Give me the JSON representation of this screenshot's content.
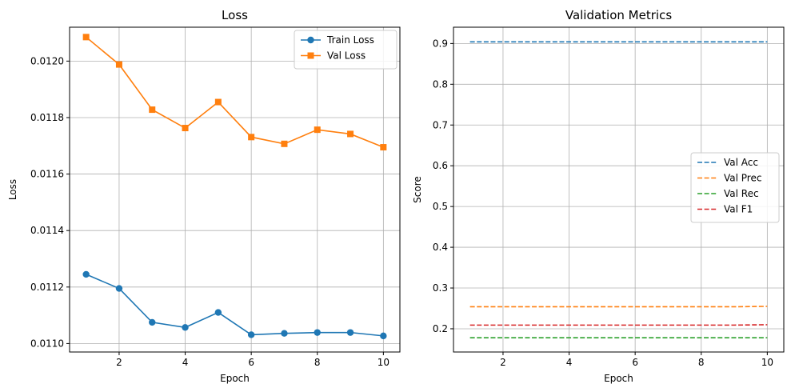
{
  "chart_data": [
    {
      "type": "line",
      "title": "Loss",
      "xlabel": "Epoch",
      "ylabel": "Loss",
      "xlim": [
        0.5,
        10.5
      ],
      "ylim": [
        0.01097,
        0.01212
      ],
      "xticks": [
        2,
        4,
        6,
        8,
        10
      ],
      "yticks": [
        0.011,
        0.0112,
        0.0114,
        0.0116,
        0.0118,
        0.012
      ],
      "ytick_labels": [
        "0.0110",
        "0.0112",
        "0.0114",
        "0.0116",
        "0.0118",
        "0.0120"
      ],
      "grid": true,
      "legend_position": "top-right",
      "x": [
        1,
        2,
        3,
        4,
        5,
        6,
        7,
        8,
        9,
        10
      ],
      "series": [
        {
          "name": "Train Loss",
          "color": "#1f77b4",
          "marker": "circle",
          "values": [
            0.011245,
            0.011195,
            0.011075,
            0.011057,
            0.01111,
            0.011031,
            0.011036,
            0.011039,
            0.011039,
            0.011027
          ]
        },
        {
          "name": "Val Loss",
          "color": "#ff7f0e",
          "marker": "square",
          "values": [
            0.012085,
            0.011988,
            0.011828,
            0.011763,
            0.011855,
            0.011731,
            0.011707,
            0.011757,
            0.011742,
            0.011695
          ]
        }
      ]
    },
    {
      "type": "line",
      "title": "Validation Metrics",
      "xlabel": "Epoch",
      "ylabel": "Score",
      "xlim": [
        0.5,
        10.5
      ],
      "ylim": [
        0.143,
        0.94
      ],
      "xticks": [
        2,
        4,
        6,
        8,
        10
      ],
      "yticks": [
        0.2,
        0.3,
        0.4,
        0.5,
        0.6,
        0.7,
        0.8,
        0.9
      ],
      "ytick_labels": [
        "0.2",
        "0.3",
        "0.4",
        "0.5",
        "0.6",
        "0.7",
        "0.8",
        "0.9"
      ],
      "grid": true,
      "legend_position": "center-right",
      "x": [
        1,
        2,
        3,
        4,
        5,
        6,
        7,
        8,
        9,
        10
      ],
      "series": [
        {
          "name": "Val Acc",
          "color": "#1f77b4",
          "dashed": true,
          "values": [
            0.904,
            0.904,
            0.904,
            0.904,
            0.904,
            0.904,
            0.904,
            0.904,
            0.904,
            0.904
          ]
        },
        {
          "name": "Val Prec",
          "color": "#ff7f0e",
          "dashed": true,
          "values": [
            0.254,
            0.254,
            0.254,
            0.254,
            0.254,
            0.254,
            0.254,
            0.254,
            0.254,
            0.255
          ]
        },
        {
          "name": "Val Rec",
          "color": "#2ca02c",
          "dashed": true,
          "values": [
            0.178,
            0.178,
            0.178,
            0.178,
            0.178,
            0.178,
            0.178,
            0.178,
            0.178,
            0.178
          ]
        },
        {
          "name": "Val F1",
          "color": "#d62728",
          "dashed": true,
          "values": [
            0.209,
            0.209,
            0.209,
            0.209,
            0.209,
            0.209,
            0.209,
            0.209,
            0.209,
            0.21
          ]
        }
      ]
    }
  ]
}
